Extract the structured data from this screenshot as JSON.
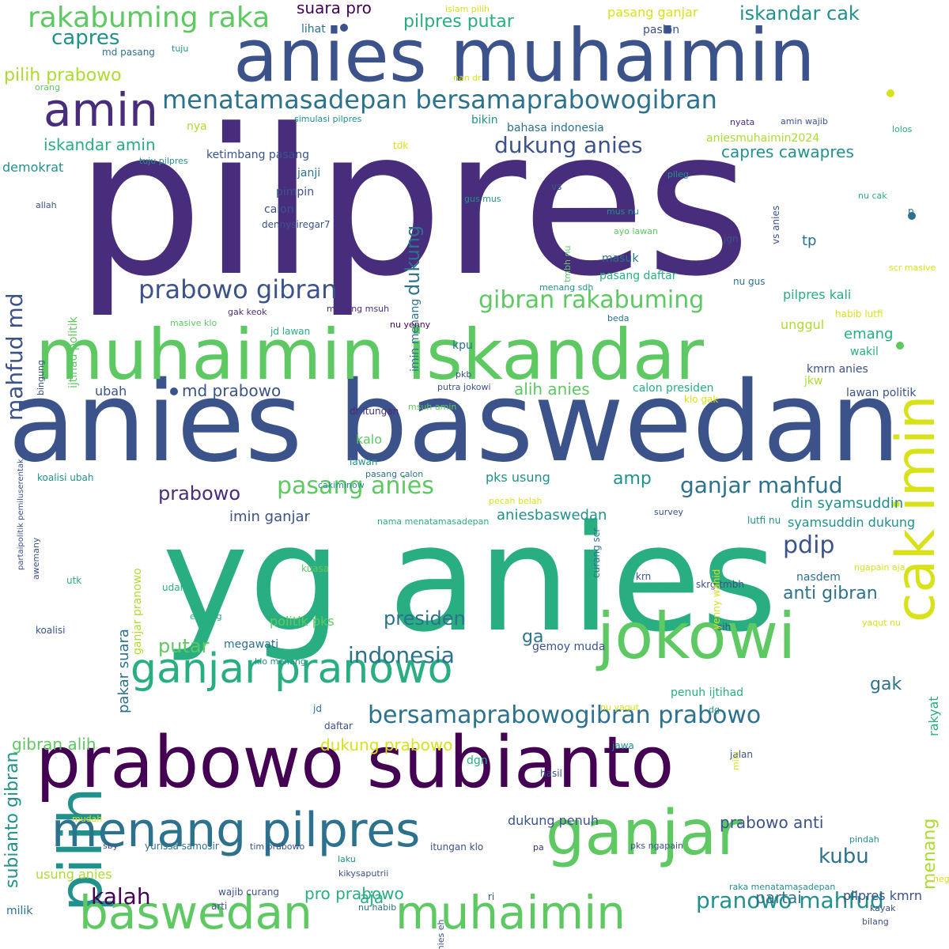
{
  "palette": {
    "p1": "#440154",
    "p2": "#472d7b",
    "p3": "#3b528b",
    "p4": "#2c728e",
    "p5": "#21918c",
    "p6": "#28ae80",
    "p7": "#5ec962",
    "p8": "#addc30",
    "p9": "#d8e219"
  },
  "words": [
    {
      "text": "pilpres",
      "color": "#472d7b"
    },
    {
      "text": "yg anies",
      "color": "#28ae80"
    },
    {
      "text": "anies baswedan",
      "color": "#3b528b"
    },
    {
      "text": "anies muhaimin",
      "color": "#3b528b"
    },
    {
      "text": "muhaimin iskandar",
      "color": "#5ec962"
    },
    {
      "text": "prabowo subianto",
      "color": "#440154"
    },
    {
      "text": "ganjar",
      "color": "#5ec962"
    },
    {
      "text": "jokowi",
      "color": "#5ec962"
    },
    {
      "text": "pilih",
      "color": "#21918c"
    },
    {
      "text": "cak imin",
      "color": "#d8e219"
    },
    {
      "text": "menang pilpres",
      "color": "#2c728e"
    },
    {
      "text": "baswedan",
      "color": "#5ec962"
    },
    {
      "text": "muhaimin",
      "color": "#5ec962"
    },
    {
      "text": "ganjar pranowo",
      "color": "#28ae80"
    },
    {
      "text": "amin",
      "color": "#472d7b"
    },
    {
      "text": "rakabuming raka",
      "color": "#5ec962"
    },
    {
      "text": "menatamasadepan bersamaprabowogibran",
      "color": "#2c728e"
    },
    {
      "text": "bersamaprabowogibran prabowo",
      "color": "#2c728e"
    },
    {
      "text": "prabowo gibran",
      "color": "#3b528b"
    },
    {
      "text": "gibran rakabuming",
      "color": "#5ec962"
    },
    {
      "text": "indonesia",
      "color": "#2c728e"
    },
    {
      "text": "pasang anies",
      "color": "#5ec962"
    },
    {
      "text": "ganjar mahfud",
      "color": "#2c728e"
    },
    {
      "text": "dukung anies",
      "color": "#3b528b"
    },
    {
      "text": "pranowo mahfud",
      "color": "#21918c"
    },
    {
      "text": "presiden",
      "color": "#2c728e"
    },
    {
      "text": "prabowo",
      "color": "#472d7b"
    },
    {
      "text": "pdip",
      "color": "#3b528b"
    },
    {
      "text": "kalah",
      "color": "#440154"
    },
    {
      "text": "kubu",
      "color": "#2c728e"
    },
    {
      "text": "mahfud md",
      "color": "#3b528b"
    },
    {
      "text": "subianto gibran",
      "color": "#21918c"
    },
    {
      "text": "dukung",
      "color": "#2c728e"
    },
    {
      "text": "putar",
      "color": "#5ec962"
    },
    {
      "text": "capres",
      "color": "#21918c"
    },
    {
      "text": "amp",
      "color": "#21918c"
    },
    {
      "text": "iskandar cak",
      "color": "#21918c"
    },
    {
      "text": "pilih prabowo",
      "color": "#addc30"
    },
    {
      "text": "menang",
      "color": "#addc30"
    },
    {
      "text": "anti gibran",
      "color": "#2c728e"
    },
    {
      "text": "pilpres putar",
      "color": "#28ae80"
    },
    {
      "text": "gak",
      "color": "#2c728e"
    },
    {
      "text": "ga",
      "color": "#2c728e"
    },
    {
      "text": "dukung prabowo",
      "color": "#d8e219"
    },
    {
      "text": "pro prabowo",
      "color": "#28ae80"
    },
    {
      "text": "partai",
      "color": "#2c728e"
    },
    {
      "text": "aja",
      "color": "#28ae80"
    },
    {
      "text": "iskandar amin",
      "color": "#28ae80"
    },
    {
      "text": "gibran alih",
      "color": "#5ec962"
    },
    {
      "text": "alih anies",
      "color": "#5ec962"
    },
    {
      "text": "md prabowo",
      "color": "#3b528b"
    },
    {
      "text": "suara pro",
      "color": "#440154"
    },
    {
      "text": "capres cawapres",
      "color": "#21918c"
    },
    {
      "text": "din syamsuddin",
      "color": "#21918c"
    },
    {
      "text": "prabowo anti",
      "color": "#3b528b"
    },
    {
      "text": "imin ganjar",
      "color": "#3b528b"
    },
    {
      "text": "aniesbaswedan",
      "color": "#21918c"
    },
    {
      "text": "usung anies",
      "color": "#addc30"
    },
    {
      "text": "pks usung",
      "color": "#21918c"
    },
    {
      "text": "pilpres kali",
      "color": "#28ae80"
    },
    {
      "text": "kalo",
      "color": "#5ec962"
    },
    {
      "text": "emang",
      "color": "#28ae80"
    },
    {
      "text": "rakyat",
      "color": "#28ae80"
    },
    {
      "text": "demokrat",
      "color": "#21918c"
    },
    {
      "text": "pakar suara",
      "color": "#2c728e"
    },
    {
      "text": "pasang ganjar",
      "color": "#d8e219"
    },
    {
      "text": "dukung penuh",
      "color": "#3b528b"
    },
    {
      "text": "politik pks",
      "color": "#5ec962"
    },
    {
      "text": "syamsuddin dukung",
      "color": "#21918c"
    },
    {
      "text": "pilpres kmrn",
      "color": "#3b528b"
    },
    {
      "text": "ubah",
      "color": "#3b528b"
    },
    {
      "text": "tp",
      "color": "#2c728e"
    },
    {
      "text": "unggul",
      "color": "#addc30"
    },
    {
      "text": "ketimbang pasang",
      "color": "#3b528b"
    },
    {
      "text": "aniesmuhaimin2024",
      "color": "#addc30"
    },
    {
      "text": "ijtihad politik",
      "color": "#5ec962"
    },
    {
      "text": "imin menang",
      "color": "#2c728e"
    },
    {
      "text": "ganjar pranowo",
      "color": "#addc30"
    },
    {
      "text": "dgn",
      "color": "#28ae80"
    },
    {
      "text": "penuh ijtihad",
      "color": "#28ae80"
    },
    {
      "text": "gemoy muda",
      "color": "#3b528b"
    },
    {
      "text": "calon presiden",
      "color": "#28ae80"
    },
    {
      "text": "lawan politik",
      "color": "#3b528b"
    },
    {
      "text": "megawati",
      "color": "#2c728e"
    },
    {
      "text": "jkw",
      "color": "#addc30"
    },
    {
      "text": "wakil",
      "color": "#28ae80"
    },
    {
      "text": "kmrn anies",
      "color": "#3b528b"
    },
    {
      "text": "kpu",
      "color": "#2c728e"
    },
    {
      "text": "bikin",
      "color": "#21918c"
    },
    {
      "text": "nya",
      "color": "#addc30"
    },
    {
      "text": "janji",
      "color": "#2c728e"
    },
    {
      "text": "pimpin",
      "color": "#3b528b"
    },
    {
      "text": "calon",
      "color": "#3b528b"
    },
    {
      "text": "dennysiregar7",
      "color": "#3b528b"
    },
    {
      "text": "lihat",
      "color": "#2c728e"
    },
    {
      "text": "paslon",
      "color": "#3b528b"
    },
    {
      "text": "md pasang",
      "color": "#2c728e"
    },
    {
      "text": "bahasa indonesia",
      "color": "#2c728e"
    },
    {
      "text": "masuk",
      "color": "#2c728e"
    },
    {
      "text": "pasang daftar",
      "color": "#28ae80"
    },
    {
      "text": "jgn",
      "color": "#3b528b"
    },
    {
      "text": "nu gus",
      "color": "#2c728e"
    },
    {
      "text": "vs",
      "color": "#3b528b"
    },
    {
      "text": "vs anies",
      "color": "#3b528b"
    },
    {
      "text": "p",
      "color": "#2c728e"
    },
    {
      "text": "nasdem",
      "color": "#2c728e"
    },
    {
      "text": "koalisi ubah",
      "color": "#21918c"
    },
    {
      "text": "koalisi",
      "color": "#3b528b"
    },
    {
      "text": "kuasa",
      "color": "#5ec962"
    },
    {
      "text": "utk",
      "color": "#28ae80"
    },
    {
      "text": "udah",
      "color": "#28ae80"
    },
    {
      "text": "hasil",
      "color": "#3b528b"
    },
    {
      "text": "jalan",
      "color": "#3b528b"
    },
    {
      "text": "jawa",
      "color": "#21918c"
    },
    {
      "text": "jd",
      "color": "#2c728e"
    },
    {
      "text": "daftar",
      "color": "#3b528b"
    },
    {
      "text": "sih",
      "color": "#3b528b"
    },
    {
      "text": "krn",
      "color": "#3b528b"
    },
    {
      "text": "skrg tmbh",
      "color": "#3b528b"
    },
    {
      "text": "curang scr",
      "color": "#2c728e"
    },
    {
      "text": "lutfi nu",
      "color": "#21918c"
    },
    {
      "text": "survey",
      "color": "#3b528b"
    },
    {
      "text": "yenny wahid",
      "color": "#d8e219"
    },
    {
      "text": "nama menatamasadepan",
      "color": "#28ae80"
    },
    {
      "text": "pasang calon",
      "color": "#2c728e"
    },
    {
      "text": "cakiminow",
      "color": "#21918c"
    },
    {
      "text": "lawan",
      "color": "#21918c"
    },
    {
      "text": "dr itungan",
      "color": "#472d7b"
    },
    {
      "text": "msuh amin",
      "color": "#5ec962"
    },
    {
      "text": "putra jokowi",
      "color": "#3b528b"
    },
    {
      "text": "pkb",
      "color": "#3b528b"
    },
    {
      "text": "klo gak",
      "color": "#d8e219"
    },
    {
      "text": "habib lutfi",
      "color": "#d8e219"
    },
    {
      "text": "nu yenny",
      "color": "#440154"
    },
    {
      "text": "beda",
      "color": "#2c728e"
    },
    {
      "text": "menang msuh",
      "color": "#472d7b"
    },
    {
      "text": "gak keok",
      "color": "#472d7b"
    },
    {
      "text": "jd lawan",
      "color": "#28ae80"
    },
    {
      "text": "masive klo",
      "color": "#5ec962"
    },
    {
      "text": "menang sdh",
      "color": "#21918c"
    },
    {
      "text": "tmbh nu",
      "color": "#5ec962"
    },
    {
      "text": "ayo lawan",
      "color": "#5ec962"
    },
    {
      "text": "mus nu",
      "color": "#21918c"
    },
    {
      "text": "gus mus",
      "color": "#21918c"
    },
    {
      "text": "pileg",
      "color": "#21918c"
    },
    {
      "text": "tdk",
      "color": "#d8e219"
    },
    {
      "text": "tuju pilpres",
      "color": "#21918c"
    },
    {
      "text": "simulasi pilpres",
      "color": "#21918c"
    },
    {
      "text": "nan dr",
      "color": "#d8e219"
    },
    {
      "text": "islam pilih",
      "color": "#d8e219"
    },
    {
      "text": "tuju",
      "color": "#21918c"
    },
    {
      "text": "orang",
      "color": "#5ec962"
    },
    {
      "text": "nyata",
      "color": "#472d7b"
    },
    {
      "text": "amin wajib",
      "color": "#3b528b"
    },
    {
      "text": "lolos",
      "color": "#28ae80"
    },
    {
      "text": "nu cak",
      "color": "#28ae80"
    },
    {
      "text": "scr masive",
      "color": "#d8e219"
    },
    {
      "text": "allah",
      "color": "#3b528b"
    },
    {
      "text": "bingung",
      "color": "#3b528b"
    },
    {
      "text": "partaipolitik pemiluserentak",
      "color": "#3b528b"
    },
    {
      "text": "awemany",
      "color": "#3b528b"
    },
    {
      "text": "eh skrg",
      "color": "#28ae80"
    },
    {
      "text": "klo menang",
      "color": "#21918c"
    },
    {
      "text": "pecah belah",
      "color": "#d8e219"
    },
    {
      "text": "ngapain aja",
      "color": "#d8e219"
    },
    {
      "text": "yaqut nu",
      "color": "#d8e219"
    },
    {
      "text": "nu yaqut",
      "color": "#d8e219"
    },
    {
      "text": "dg",
      "color": "#21918c"
    },
    {
      "text": "milu",
      "color": "#d8e219"
    },
    {
      "text": "mudah",
      "color": "#d8e219"
    },
    {
      "text": "sby",
      "color": "#3b528b"
    },
    {
      "text": "yurissa samosir",
      "color": "#2c728e"
    },
    {
      "text": "tim prabowo",
      "color": "#3b528b"
    },
    {
      "text": "itungan klo",
      "color": "#3b528b"
    },
    {
      "text": "pks ngapain",
      "color": "#3b528b"
    },
    {
      "text": "pindah",
      "color": "#21918c"
    },
    {
      "text": "pa",
      "color": "#472d7b"
    },
    {
      "text": "laku",
      "color": "#21918c"
    },
    {
      "text": "kikysaputrii",
      "color": "#3b528b"
    },
    {
      "text": "wajib curang",
      "color": "#3b528b"
    },
    {
      "text": "arti",
      "color": "#3b528b"
    },
    {
      "text": "nu habib",
      "color": "#2c728e"
    },
    {
      "text": "anies eh",
      "color": "#3b528b"
    },
    {
      "text": "ri",
      "color": "#3b528b"
    },
    {
      "text": "raka menatamasadepan",
      "color": "#21918c"
    },
    {
      "text": "negara",
      "color": "#d8e219"
    },
    {
      "text": "kayak",
      "color": "#3b528b"
    },
    {
      "text": "bilang",
      "color": "#3b528b"
    },
    {
      "text": "milik",
      "color": "#2c728e"
    }
  ],
  "dots": [
    {
      "color": "#3b528b"
    },
    {
      "color": "#3b528b"
    },
    {
      "color": "#d8e219"
    },
    {
      "color": "#5ec962"
    },
    {
      "color": "#2c728e"
    }
  ]
}
